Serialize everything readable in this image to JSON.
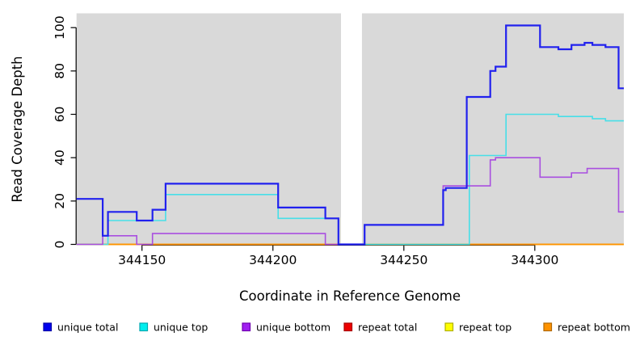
{
  "chart_data": {
    "type": "line",
    "subtype": "step",
    "title": "",
    "xlabel": "Coordinate in Reference Genome",
    "ylabel": "Read Coverage Depth",
    "xlim": [
      344125,
      344334
    ],
    "ylim": [
      0,
      107
    ],
    "x_ticks": [
      {
        "value": 344150,
        "label": "344150"
      },
      {
        "value": 344200,
        "label": "344200"
      },
      {
        "value": 344250,
        "label": "344250"
      },
      {
        "value": 344300,
        "label": "344300"
      }
    ],
    "y_ticks": [
      {
        "value": 0,
        "label": "0"
      },
      {
        "value": 20,
        "label": "20"
      },
      {
        "value": 40,
        "label": "40"
      },
      {
        "value": 60,
        "label": "60"
      },
      {
        "value": 80,
        "label": "80"
      },
      {
        "value": 100,
        "label": "100"
      }
    ],
    "grid": false,
    "plot_background": "#d9d9d9",
    "masked_region": {
      "from": 344226,
      "to": 344234,
      "color": "#ffffff"
    },
    "legend_position": "bottom",
    "draw_order": [
      "repeat total",
      "repeat top",
      "repeat bottom",
      "unique top",
      "unique bottom",
      "unique total"
    ],
    "series": [
      {
        "name": "unique total",
        "color": "#2121ee",
        "line_width": 2.2,
        "x_end": 344334,
        "steps": [
          [
            344125,
            21
          ],
          [
            344135,
            4
          ],
          [
            344137,
            15
          ],
          [
            344148,
            11
          ],
          [
            344154,
            16
          ],
          [
            344159,
            28
          ],
          [
            344202,
            17
          ],
          [
            344220,
            12
          ],
          [
            344225,
            0
          ],
          [
            344235,
            9
          ],
          [
            344265,
            25
          ],
          [
            344266,
            26
          ],
          [
            344274,
            68
          ],
          [
            344283,
            80
          ],
          [
            344285,
            82
          ],
          [
            344289,
            101
          ],
          [
            344302,
            91
          ],
          [
            344309,
            90
          ],
          [
            344314,
            92
          ],
          [
            344319,
            93
          ],
          [
            344322,
            92
          ],
          [
            344327,
            91
          ],
          [
            344332,
            72
          ]
        ]
      },
      {
        "name": "unique top",
        "color": "#47dfe8",
        "line_width": 1.6,
        "x_end": 344334,
        "steps": [
          [
            344125,
            0
          ],
          [
            344137,
            11
          ],
          [
            344159,
            23
          ],
          [
            344202,
            12
          ],
          [
            344225,
            0
          ],
          [
            344275,
            41
          ],
          [
            344289,
            60
          ],
          [
            344309,
            59
          ],
          [
            344322,
            58
          ],
          [
            344327,
            57
          ]
        ]
      },
      {
        "name": "unique bottom",
        "color": "#a94fe0",
        "line_width": 1.6,
        "x_end": 344334,
        "steps": [
          [
            344125,
            0
          ],
          [
            344135,
            4
          ],
          [
            344148,
            0
          ],
          [
            344154,
            5
          ],
          [
            344220,
            0
          ],
          [
            344235,
            9
          ],
          [
            344265,
            27
          ],
          [
            344283,
            39
          ],
          [
            344285,
            40
          ],
          [
            344302,
            31
          ],
          [
            344314,
            33
          ],
          [
            344320,
            35
          ],
          [
            344332,
            15
          ]
        ]
      },
      {
        "name": "repeat total",
        "color": "#e00000",
        "line_width": 1.6,
        "x_end": 344334,
        "steps": [
          [
            344125,
            0
          ]
        ]
      },
      {
        "name": "repeat top",
        "color": "#f2f200",
        "line_width": 1.6,
        "x_end": 344334,
        "steps": [
          [
            344125,
            0
          ]
        ]
      },
      {
        "name": "repeat bottom",
        "color": "#ff9300",
        "line_width": 1.8,
        "x_end": 344334,
        "steps": [
          [
            344125,
            0
          ]
        ]
      }
    ]
  },
  "legend": {
    "items": [
      {
        "label": "unique total",
        "fill": "#0000ee",
        "border": "#0000a8"
      },
      {
        "label": "unique top",
        "fill": "#00eeee",
        "border": "#00a8b0"
      },
      {
        "label": "unique bottom",
        "fill": "#a020f0",
        "border": "#7000b0"
      },
      {
        "label": "repeat total",
        "fill": "#ee0000",
        "border": "#a80000"
      },
      {
        "label": "repeat top",
        "fill": "#ffff00",
        "border": "#b0b000"
      },
      {
        "label": "repeat bottom",
        "fill": "#ff9300",
        "border": "#b06800"
      }
    ]
  }
}
